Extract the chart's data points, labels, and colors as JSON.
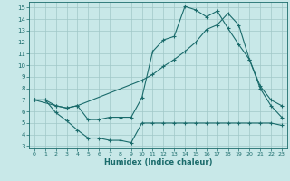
{
  "xlabel": "Humidex (Indice chaleur)",
  "bg_color": "#c8e8e8",
  "line_color": "#1a6b6b",
  "grid_color": "#a0c8c8",
  "xlim": [
    -0.5,
    23.5
  ],
  "ylim": [
    2.8,
    15.5
  ],
  "xticks": [
    0,
    1,
    2,
    3,
    4,
    5,
    6,
    7,
    8,
    9,
    10,
    11,
    12,
    13,
    14,
    15,
    16,
    17,
    18,
    19,
    20,
    21,
    22,
    23
  ],
  "yticks": [
    3,
    4,
    5,
    6,
    7,
    8,
    9,
    10,
    11,
    12,
    13,
    14,
    15
  ],
  "line1_x": [
    0,
    1,
    2,
    3,
    4,
    5,
    6,
    7,
    8,
    9,
    10,
    11,
    12,
    13,
    14,
    15,
    16,
    17,
    18,
    19,
    20,
    21,
    22,
    23
  ],
  "line1_y": [
    7.0,
    7.0,
    5.9,
    5.2,
    4.4,
    3.7,
    3.7,
    3.5,
    3.5,
    3.3,
    5.0,
    5.0,
    5.0,
    5.0,
    5.0,
    5.0,
    5.0,
    5.0,
    5.0,
    5.0,
    5.0,
    5.0,
    5.0,
    4.8
  ],
  "line2_x": [
    0,
    2,
    3,
    4,
    10,
    11,
    12,
    13,
    14,
    15,
    16,
    17,
    18,
    19,
    20,
    21,
    22,
    23
  ],
  "line2_y": [
    7.0,
    6.5,
    6.3,
    6.5,
    8.7,
    9.2,
    9.9,
    10.5,
    11.2,
    12.0,
    13.1,
    13.5,
    14.5,
    13.5,
    10.5,
    8.2,
    7.0,
    6.5
  ],
  "line3_x": [
    0,
    1,
    2,
    3,
    4,
    5,
    6,
    7,
    8,
    9,
    10,
    11,
    12,
    13,
    14,
    15,
    16,
    17,
    18,
    19,
    20,
    21,
    22,
    23
  ],
  "line3_y": [
    7.0,
    7.0,
    6.5,
    6.3,
    6.5,
    5.3,
    5.3,
    5.5,
    5.5,
    5.5,
    7.2,
    11.2,
    12.2,
    12.5,
    15.1,
    14.8,
    14.2,
    14.7,
    13.2,
    11.8,
    10.5,
    8.0,
    6.5,
    5.5
  ]
}
